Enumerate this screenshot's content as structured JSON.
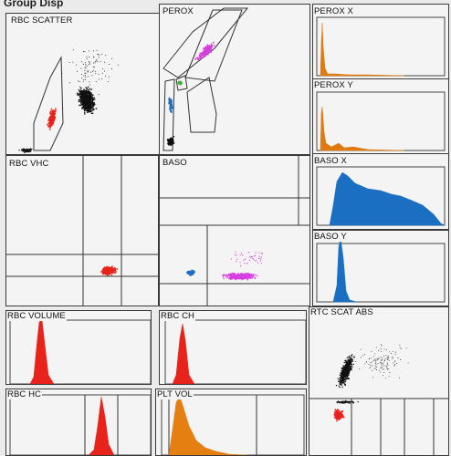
{
  "screen_title": "Group Disp",
  "panels": {
    "rbc_scatter": "RBC SCATTER",
    "perox": "PEROX",
    "perox_x": "PEROX X",
    "perox_y": "PEROX Y",
    "rbc_vhc": "RBC VHC",
    "baso": "BASO",
    "baso_x": "BASO X",
    "baso_y": "BASO Y",
    "rbc_volume": "RBC VOLUME",
    "rbc_ch": "RBC CH",
    "rtc_scat_abs": "RTC SCAT ABS",
    "rbc_hc": "RBC HC",
    "plt_vol": "PLT VOL"
  },
  "colors": {
    "rbc": "#e8231c",
    "lymph": "#1f6fc0",
    "neut": "#d63fe0",
    "mono": "#3fae3f",
    "perox_hist": "#e07a10",
    "baso_hist": "#1a6fc2",
    "plt_hist": "#e57f12",
    "black_dots": "#111111"
  }
}
